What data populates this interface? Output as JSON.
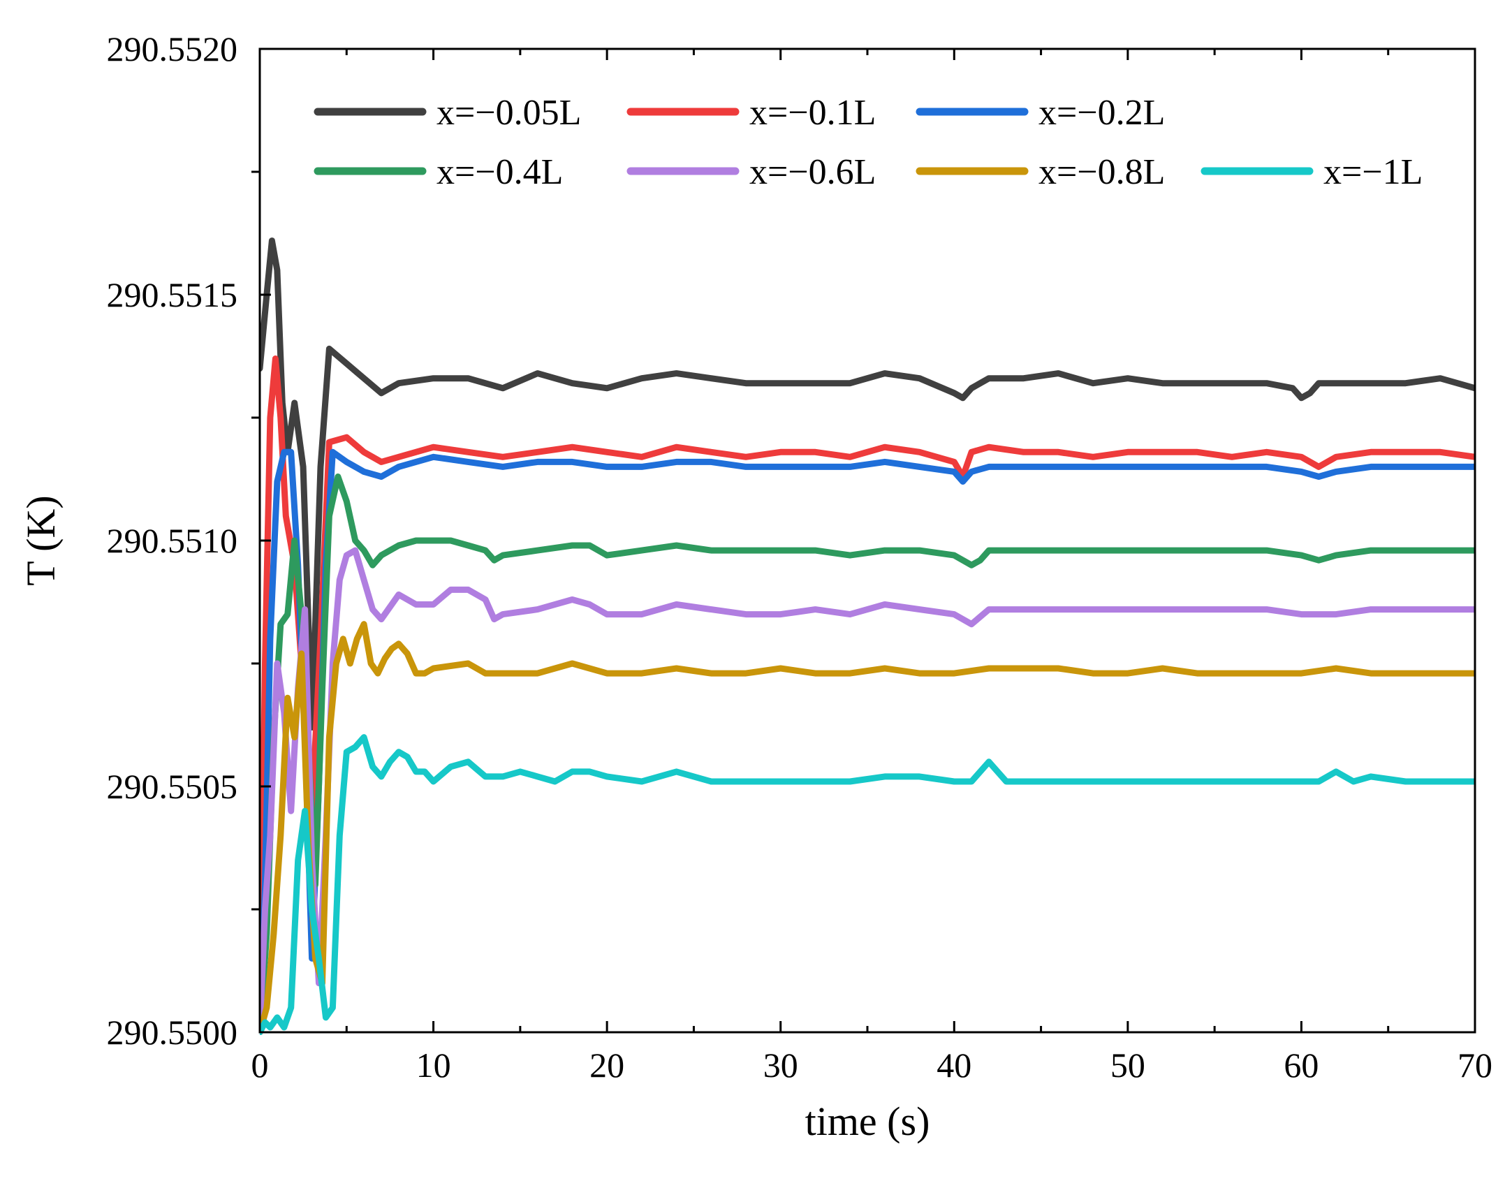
{
  "chart_data": {
    "type": "line",
    "title": "",
    "xlabel": "time (s)",
    "ylabel": "T (K)",
    "xlim": [
      0,
      70
    ],
    "ylim": [
      290.55,
      290.552
    ],
    "xticks": [
      0,
      10,
      20,
      30,
      40,
      50,
      60,
      70
    ],
    "xtick_labels": [
      "0",
      "10",
      "20",
      "30",
      "40",
      "50",
      "60",
      "70"
    ],
    "yticks": [
      290.55,
      290.5505,
      290.551,
      290.5515,
      290.552
    ],
    "ytick_labels": [
      "290.5500",
      "290.5505",
      "290.5510",
      "290.5515",
      "290.5520"
    ],
    "grid": false,
    "legend_position": "top",
    "series": [
      {
        "name": "x=−0.05L",
        "color": "#404040",
        "x": [
          0,
          0.4,
          0.7,
          1.0,
          1.3,
          1.6,
          2.0,
          2.5,
          3.0,
          3.5,
          4.0,
          5.0,
          6.0,
          7.0,
          8.0,
          10.0,
          12.0,
          14.0,
          16.0,
          18.0,
          20.0,
          22.0,
          24.0,
          26.0,
          28.0,
          30.0,
          32.0,
          34.0,
          36.0,
          38.0,
          40.0,
          40.5,
          41.0,
          42.0,
          44.0,
          46.0,
          48.0,
          50.0,
          52.0,
          54.0,
          56.0,
          58.0,
          59.5,
          60.0,
          60.5,
          61.0,
          62.0,
          64.0,
          66.0,
          68.0,
          70.0
        ],
        "y": [
          290.55135,
          290.5515,
          290.55161,
          290.55155,
          290.55128,
          290.55118,
          290.55128,
          290.55115,
          290.55062,
          290.55115,
          290.55139,
          290.55136,
          290.55133,
          290.5513,
          290.55132,
          290.55133,
          290.55133,
          290.55131,
          290.55134,
          290.55132,
          290.55131,
          290.55133,
          290.55134,
          290.55133,
          290.55132,
          290.55132,
          290.55132,
          290.55132,
          290.55134,
          290.55133,
          290.5513,
          290.55129,
          290.55131,
          290.55133,
          290.55133,
          290.55134,
          290.55132,
          290.55133,
          290.55132,
          290.55132,
          290.55132,
          290.55132,
          290.55131,
          290.55129,
          290.5513,
          290.55132,
          290.55132,
          290.55132,
          290.55132,
          290.55133,
          290.55131
        ]
      },
      {
        "name": "x=−0.1L",
        "color": "#ee3b3b",
        "x": [
          0,
          0.3,
          0.6,
          0.9,
          1.2,
          1.5,
          2.0,
          2.5,
          3.0,
          3.5,
          4.0,
          5.0,
          6.0,
          7.0,
          8.0,
          10.0,
          12.0,
          14.0,
          16.0,
          18.0,
          20.0,
          22.0,
          24.0,
          26.0,
          28.0,
          30.0,
          32.0,
          34.0,
          36.0,
          38.0,
          40.0,
          40.5,
          41.0,
          42.0,
          44.0,
          46.0,
          48.0,
          50.0,
          52.0,
          54.0,
          56.0,
          58.0,
          60.0,
          61.0,
          62.0,
          64.0,
          66.0,
          68.0,
          70.0
        ],
        "y": [
          290.55,
          290.55075,
          290.55125,
          290.55137,
          290.55125,
          290.55105,
          290.55095,
          290.5507,
          290.55045,
          290.5508,
          290.5512,
          290.55121,
          290.55118,
          290.55116,
          290.55117,
          290.55119,
          290.55118,
          290.55117,
          290.55118,
          290.55119,
          290.55118,
          290.55117,
          290.55119,
          290.55118,
          290.55117,
          290.55118,
          290.55118,
          290.55117,
          290.55119,
          290.55118,
          290.55116,
          290.55113,
          290.55118,
          290.55119,
          290.55118,
          290.55118,
          290.55117,
          290.55118,
          290.55118,
          290.55118,
          290.55117,
          290.55118,
          290.55117,
          290.55115,
          290.55117,
          290.55118,
          290.55118,
          290.55118,
          290.55117
        ]
      },
      {
        "name": "x=−0.2L",
        "color": "#1f6fd9",
        "x": [
          0,
          0.3,
          0.6,
          1.0,
          1.4,
          1.8,
          2.2,
          2.6,
          3.0,
          3.4,
          3.8,
          4.2,
          5.0,
          6.0,
          7.0,
          8.0,
          10.0,
          12.0,
          14.0,
          16.0,
          18.0,
          20.0,
          22.0,
          24.0,
          26.0,
          28.0,
          30.0,
          32.0,
          34.0,
          36.0,
          38.0,
          40.0,
          40.5,
          41.0,
          42.0,
          44.0,
          46.0,
          48.0,
          50.0,
          52.0,
          54.0,
          56.0,
          58.0,
          60.0,
          61.0,
          62.0,
          64.0,
          66.0,
          68.0,
          70.0
        ],
        "y": [
          290.55,
          290.5503,
          290.5508,
          290.55112,
          290.55118,
          290.55118,
          290.55095,
          290.5506,
          290.55015,
          290.5505,
          290.55095,
          290.55118,
          290.55116,
          290.55114,
          290.55113,
          290.55115,
          290.55117,
          290.55116,
          290.55115,
          290.55116,
          290.55116,
          290.55115,
          290.55115,
          290.55116,
          290.55116,
          290.55115,
          290.55115,
          290.55115,
          290.55115,
          290.55116,
          290.55115,
          290.55114,
          290.55112,
          290.55114,
          290.55115,
          290.55115,
          290.55115,
          290.55115,
          290.55115,
          290.55115,
          290.55115,
          290.55115,
          290.55115,
          290.55114,
          290.55113,
          290.55114,
          290.55115,
          290.55115,
          290.55115,
          290.55115
        ]
      },
      {
        "name": "x=−0.4L",
        "color": "#2e9a5e",
        "x": [
          0,
          0.4,
          0.8,
          1.2,
          1.6,
          2.0,
          2.4,
          2.8,
          3.2,
          3.6,
          4.0,
          4.5,
          5.0,
          5.5,
          6.0,
          6.5,
          7.0,
          8.0,
          9.0,
          10.0,
          11.0,
          12.0,
          13.0,
          13.5,
          14.0,
          16.0,
          18.0,
          19.0,
          20.0,
          22.0,
          24.0,
          26.0,
          28.0,
          30.0,
          32.0,
          34.0,
          36.0,
          38.0,
          40.0,
          41.0,
          41.5,
          42.0,
          44.0,
          46.0,
          48.0,
          50.0,
          52.0,
          54.0,
          56.0,
          58.0,
          60.0,
          61.0,
          62.0,
          64.0,
          66.0,
          68.0,
          70.0
        ],
        "y": [
          290.55,
          290.5502,
          290.5506,
          290.55083,
          290.55085,
          290.551,
          290.55085,
          290.55058,
          290.5503,
          290.5507,
          290.55105,
          290.55113,
          290.55108,
          290.551,
          290.55098,
          290.55095,
          290.55097,
          290.55099,
          290.551,
          290.551,
          290.551,
          290.55099,
          290.55098,
          290.55096,
          290.55097,
          290.55098,
          290.55099,
          290.55099,
          290.55097,
          290.55098,
          290.55099,
          290.55098,
          290.55098,
          290.55098,
          290.55098,
          290.55097,
          290.55098,
          290.55098,
          290.55097,
          290.55095,
          290.55096,
          290.55098,
          290.55098,
          290.55098,
          290.55098,
          290.55098,
          290.55098,
          290.55098,
          290.55098,
          290.55098,
          290.55097,
          290.55096,
          290.55097,
          290.55098,
          290.55098,
          290.55098,
          290.55098
        ]
      },
      {
        "name": "x=−0.6L",
        "color": "#b07ee0",
        "x": [
          0,
          0.3,
          0.6,
          1.0,
          1.4,
          1.8,
          2.2,
          2.6,
          3.0,
          3.4,
          3.8,
          4.2,
          4.6,
          5.0,
          5.5,
          6.0,
          6.5,
          7.0,
          8.0,
          9.0,
          10.0,
          11.0,
          12.0,
          13.0,
          13.5,
          14.0,
          16.0,
          18.0,
          19.0,
          20.0,
          22.0,
          24.0,
          26.0,
          28.0,
          30.0,
          32.0,
          34.0,
          36.0,
          38.0,
          40.0,
          41.0,
          42.0,
          44.0,
          46.0,
          48.0,
          50.0,
          52.0,
          54.0,
          56.0,
          58.0,
          60.0,
          62.0,
          64.0,
          66.0,
          68.0,
          70.0
        ],
        "y": [
          290.55,
          290.55025,
          290.5504,
          290.55075,
          290.55065,
          290.55045,
          290.5507,
          290.55086,
          290.55035,
          290.5501,
          290.5504,
          290.55075,
          290.55092,
          290.55097,
          290.55098,
          290.55092,
          290.55086,
          290.55084,
          290.55089,
          290.55087,
          290.55087,
          290.5509,
          290.5509,
          290.55088,
          290.55084,
          290.55085,
          290.55086,
          290.55088,
          290.55087,
          290.55085,
          290.55085,
          290.55087,
          290.55086,
          290.55085,
          290.55085,
          290.55086,
          290.55085,
          290.55087,
          290.55086,
          290.55085,
          290.55083,
          290.55086,
          290.55086,
          290.55086,
          290.55086,
          290.55086,
          290.55086,
          290.55086,
          290.55086,
          290.55086,
          290.55085,
          290.55085,
          290.55086,
          290.55086,
          290.55086,
          290.55086
        ]
      },
      {
        "name": "x=−0.8L",
        "color": "#c9950a",
        "x": [
          0,
          0.4,
          0.8,
          1.2,
          1.6,
          2.0,
          2.4,
          2.8,
          3.2,
          3.6,
          4.0,
          4.4,
          4.8,
          5.2,
          5.6,
          6.0,
          6.4,
          6.8,
          7.2,
          7.6,
          8.0,
          8.5,
          9.0,
          9.5,
          10.0,
          12.0,
          13.0,
          14.0,
          16.0,
          18.0,
          20.0,
          22.0,
          24.0,
          26.0,
          28.0,
          30.0,
          32.0,
          34.0,
          36.0,
          38.0,
          40.0,
          42.0,
          44.0,
          46.0,
          48.0,
          50.0,
          52.0,
          54.0,
          56.0,
          58.0,
          60.0,
          62.0,
          64.0,
          66.0,
          68.0,
          70.0
        ],
        "y": [
          290.55,
          290.55005,
          290.5502,
          290.5504,
          290.55068,
          290.5506,
          290.55077,
          290.55038,
          290.55015,
          290.5501,
          290.5506,
          290.55075,
          290.5508,
          290.55075,
          290.5508,
          290.55083,
          290.55075,
          290.55073,
          290.55076,
          290.55078,
          290.55079,
          290.55077,
          290.55073,
          290.55073,
          290.55074,
          290.55075,
          290.55073,
          290.55073,
          290.55073,
          290.55075,
          290.55073,
          290.55073,
          290.55074,
          290.55073,
          290.55073,
          290.55074,
          290.55073,
          290.55073,
          290.55074,
          290.55073,
          290.55073,
          290.55074,
          290.55074,
          290.55074,
          290.55073,
          290.55073,
          290.55074,
          290.55073,
          290.55073,
          290.55073,
          290.55073,
          290.55074,
          290.55073,
          290.55073,
          290.55073,
          290.55073
        ]
      },
      {
        "name": "x=−1L",
        "color": "#16c8c8",
        "x": [
          0,
          0.3,
          0.6,
          1.0,
          1.4,
          1.8,
          2.2,
          2.6,
          3.0,
          3.4,
          3.8,
          4.2,
          4.6,
          5.0,
          5.5,
          6.0,
          6.5,
          7.0,
          7.5,
          8.0,
          8.5,
          9.0,
          9.5,
          10.0,
          11.0,
          12.0,
          13.0,
          14.0,
          15.0,
          16.0,
          17.0,
          18.0,
          19.0,
          20.0,
          22.0,
          24.0,
          26.0,
          28.0,
          30.0,
          32.0,
          34.0,
          36.0,
          38.0,
          40.0,
          41.0,
          42.0,
          43.0,
          44.0,
          46.0,
          48.0,
          50.0,
          52.0,
          54.0,
          56.0,
          58.0,
          60.0,
          61.0,
          62.0,
          63.0,
          64.0,
          66.0,
          68.0,
          70.0
        ],
        "y": [
          290.55,
          290.55002,
          290.55001,
          290.55003,
          290.55001,
          290.55005,
          290.55035,
          290.55045,
          290.55025,
          290.55015,
          290.55003,
          290.55005,
          290.5504,
          290.55057,
          290.55058,
          290.5506,
          290.55054,
          290.55052,
          290.55055,
          290.55057,
          290.55056,
          290.55053,
          290.55053,
          290.55051,
          290.55054,
          290.55055,
          290.55052,
          290.55052,
          290.55053,
          290.55052,
          290.55051,
          290.55053,
          290.55053,
          290.55052,
          290.55051,
          290.55053,
          290.55051,
          290.55051,
          290.55051,
          290.55051,
          290.55051,
          290.55052,
          290.55052,
          290.55051,
          290.55051,
          290.55055,
          290.55051,
          290.55051,
          290.55051,
          290.55051,
          290.55051,
          290.55051,
          290.55051,
          290.55051,
          290.55051,
          290.55051,
          290.55051,
          290.55053,
          290.55051,
          290.55052,
          290.55051,
          290.55051,
          290.55051
        ]
      }
    ]
  }
}
